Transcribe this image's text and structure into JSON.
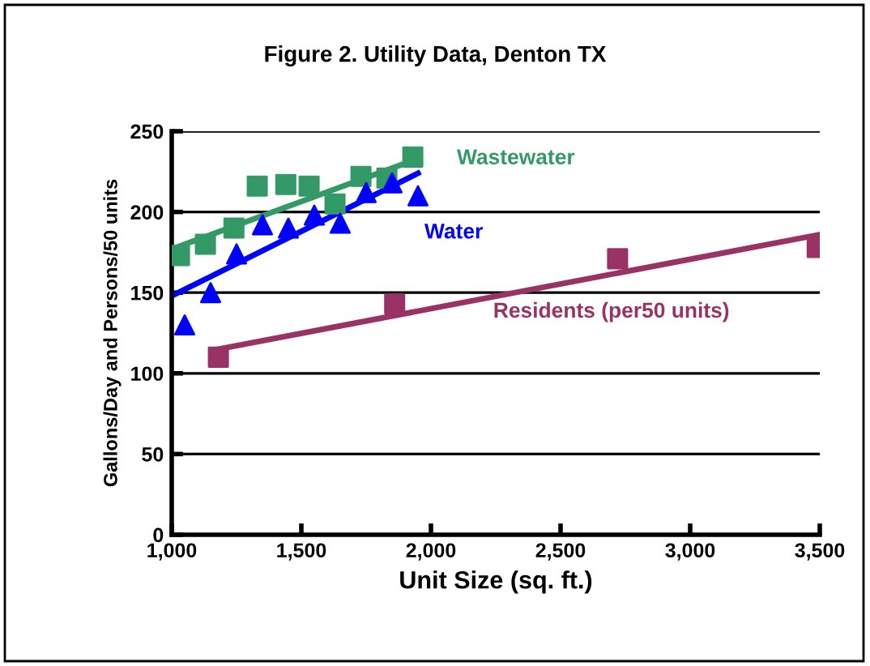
{
  "chart_data": {
    "type": "scatter",
    "title": "Figure 2. Utility Data, Denton TX",
    "xlabel": "Unit Size (sq. ft.)",
    "ylabel": "Gallons/Day and Persons/50 units",
    "xlim": [
      1000,
      3500
    ],
    "xticks": [
      {
        "value": 1000,
        "label": "1,000"
      },
      {
        "value": 1500,
        "label": "1,500"
      },
      {
        "value": 2000,
        "label": "2,000"
      },
      {
        "value": 2500,
        "label": "2,500"
      },
      {
        "value": 3000,
        "label": "3,000"
      },
      {
        "value": 3500,
        "label": "3,500"
      }
    ],
    "ylim": [
      0,
      250
    ],
    "yticks": [
      0,
      50,
      100,
      150,
      200,
      250
    ],
    "grid": "y",
    "legend": false,
    "series": [
      {
        "marker": "square",
        "color": "#339966",
        "x": [
          1030,
          1130,
          1240,
          1330,
          1440,
          1530,
          1630,
          1730,
          1830,
          1930
        ],
        "values": [
          173,
          180,
          190,
          216,
          217,
          216,
          205,
          222,
          221,
          234
        ]
      },
      {
        "marker": "triangle",
        "color": "#0000ff",
        "x": [
          1050,
          1150,
          1250,
          1350,
          1450,
          1550,
          1650,
          1750,
          1850,
          1950
        ],
        "values": [
          130,
          150,
          174,
          192,
          190,
          198,
          193,
          212,
          218,
          210
        ]
      },
      {
        "marker": "square",
        "color": "#993366",
        "x": [
          1180,
          1860,
          2720,
          3490
        ],
        "values": [
          110,
          143,
          171,
          178
        ]
      },
      {
        "type": "line",
        "name": "Wastewater",
        "color": "#339966",
        "x": [
          1000,
          1950
        ],
        "values": [
          177,
          233
        ]
      },
      {
        "type": "line",
        "name": "Water",
        "color": "#0000ff",
        "x": [
          1000,
          1950
        ],
        "values": [
          148,
          224
        ]
      },
      {
        "type": "line",
        "name": "Residents (per50 units)",
        "color": "#993366",
        "x": [
          1180,
          3500
        ],
        "values": [
          115,
          186
        ]
      }
    ]
  }
}
